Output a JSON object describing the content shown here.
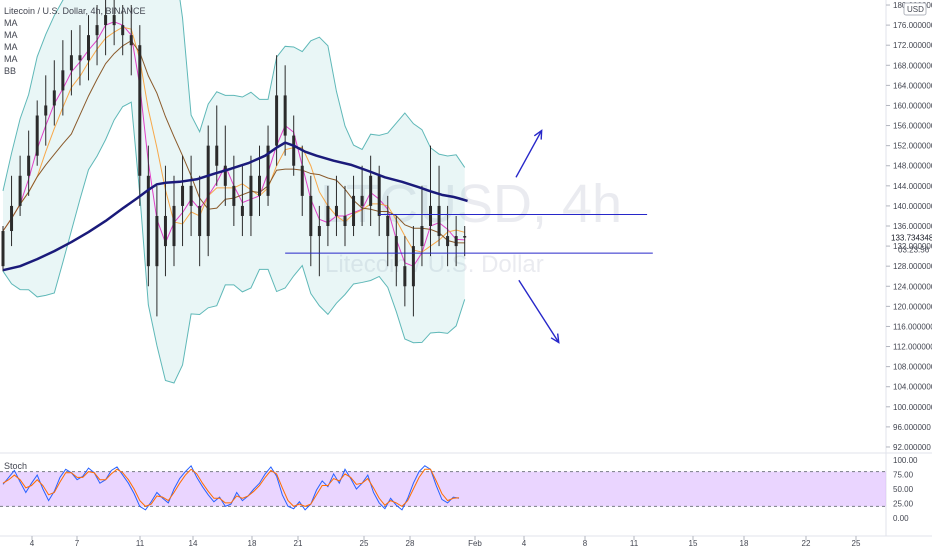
{
  "symbol_title": "Litecoin / U.S. Dollar, 4h, BINANCE",
  "indicators": [
    "MA",
    "MA",
    "MA",
    "MA",
    "BB"
  ],
  "watermark": {
    "symbol": "LTCUSD, 4h",
    "name": "Litecoin / U.S. Dollar"
  },
  "currency_badge": "USD",
  "stoch_label": "Stoch",
  "chart_data": {
    "type": "line",
    "title": "Litecoin / U.S. Dollar, 4h, BINANCE",
    "y_ticks": [
      "92.000000",
      "96.000000",
      "100.000000",
      "104.000000",
      "108.000000",
      "112.000000",
      "116.000000",
      "120.000000",
      "124.000000",
      "128.000000",
      "132.000000",
      "136.000000",
      "140.000000",
      "144.000000",
      "148.000000",
      "152.000000",
      "156.000000",
      "160.000000",
      "164.000000",
      "168.000000",
      "172.000000",
      "176.000000",
      "180.000000"
    ],
    "ylim": [
      91,
      181
    ],
    "x_ticks": [
      "4",
      "7",
      "11",
      "14",
      "18",
      "21",
      "25",
      "28",
      "Feb",
      "4",
      "8",
      "11",
      "15",
      "18",
      "22",
      "25"
    ],
    "last_price": "133.734348",
    "countdown": "03:23:56",
    "last_price_value": 133.73,
    "ma_long_series": [
      [
        0,
        127.2
      ],
      [
        6,
        128.0
      ],
      [
        12,
        129.4
      ],
      [
        18,
        131.0
      ],
      [
        24,
        132.8
      ],
      [
        30,
        134.8
      ],
      [
        36,
        137.0
      ],
      [
        42,
        139.5
      ],
      [
        47,
        141.5
      ],
      [
        51,
        143.2
      ],
      [
        54,
        144.3
      ],
      [
        57,
        144.6
      ],
      [
        62,
        144.8
      ],
      [
        68,
        145.3
      ],
      [
        74,
        146.4
      ],
      [
        80,
        147.4
      ],
      [
        86,
        148.5
      ],
      [
        92,
        150.0
      ],
      [
        96,
        151.6
      ],
      [
        99,
        152.6
      ],
      [
        102,
        152.0
      ],
      [
        106,
        150.8
      ],
      [
        110,
        150.0
      ],
      [
        116,
        149.0
      ],
      [
        122,
        148.2
      ],
      [
        128,
        147.0
      ],
      [
        134,
        145.7
      ],
      [
        140,
        144.8
      ],
      [
        146,
        143.7
      ],
      [
        150,
        142.9
      ],
      [
        154,
        142.2
      ],
      [
        158,
        141.8
      ],
      [
        160,
        141.5
      ],
      [
        163,
        141.0
      ]
    ],
    "support_line": {
      "x": [
        99,
        228
      ],
      "y": 130.6
    },
    "resistance_line": {
      "x": [
        132,
        226
      ],
      "y": 138.3
    },
    "arrow_up": {
      "from": [
        180,
        145.7
      ],
      "to": [
        189,
        155.0
      ]
    },
    "arrow_down": {
      "from": [
        181,
        125.2
      ],
      "to": [
        195,
        112.8
      ]
    },
    "candles": [
      [
        0,
        128,
        136,
        127,
        135
      ],
      [
        3,
        135,
        146,
        132,
        140
      ],
      [
        6,
        140,
        150,
        138,
        146
      ],
      [
        9,
        146,
        155,
        142,
        150
      ],
      [
        12,
        150,
        161,
        148,
        158
      ],
      [
        15,
        158,
        166,
        152,
        160
      ],
      [
        18,
        160,
        169,
        156,
        163
      ],
      [
        21,
        163,
        173,
        158,
        167
      ],
      [
        24,
        167,
        175,
        162,
        170
      ],
      [
        27,
        170,
        176,
        164,
        169
      ],
      [
        30,
        169,
        178,
        165,
        174
      ],
      [
        33,
        174,
        180,
        168,
        176
      ],
      [
        36,
        176,
        181,
        170,
        178
      ],
      [
        39,
        178,
        181,
        172,
        176
      ],
      [
        42,
        176,
        180,
        170,
        174
      ],
      [
        45,
        174,
        180,
        166,
        172
      ],
      [
        48,
        172,
        176,
        140,
        146
      ],
      [
        51,
        146,
        152,
        124,
        128
      ],
      [
        54,
        128,
        144,
        118,
        138
      ],
      [
        57,
        138,
        148,
        126,
        132
      ],
      [
        60,
        132,
        146,
        128,
        140
      ],
      [
        63,
        140,
        150,
        132,
        144
      ],
      [
        66,
        144,
        150,
        134,
        140
      ],
      [
        69,
        140,
        146,
        128,
        134
      ],
      [
        72,
        134,
        156,
        130,
        152
      ],
      [
        75,
        152,
        160,
        144,
        148
      ],
      [
        78,
        148,
        156,
        140,
        144
      ],
      [
        81,
        144,
        150,
        136,
        140
      ],
      [
        84,
        140,
        148,
        134,
        138
      ],
      [
        87,
        138,
        150,
        134,
        146
      ],
      [
        90,
        146,
        152,
        138,
        142
      ],
      [
        93,
        142,
        156,
        140,
        152
      ],
      [
        96,
        152,
        170,
        148,
        162
      ],
      [
        99,
        162,
        168,
        150,
        154
      ],
      [
        102,
        154,
        158,
        146,
        148
      ],
      [
        105,
        148,
        152,
        138,
        142
      ],
      [
        108,
        142,
        146,
        128,
        134
      ],
      [
        111,
        134,
        140,
        126,
        136
      ],
      [
        114,
        136,
        144,
        132,
        140
      ],
      [
        117,
        140,
        146,
        134,
        138
      ],
      [
        120,
        138,
        144,
        132,
        136
      ],
      [
        123,
        136,
        146,
        134,
        142
      ],
      [
        126,
        142,
        148,
        136,
        140
      ],
      [
        129,
        140,
        150,
        136,
        146
      ],
      [
        132,
        146,
        148,
        134,
        138
      ],
      [
        135,
        138,
        142,
        128,
        134
      ],
      [
        138,
        134,
        138,
        124,
        128
      ],
      [
        141,
        128,
        134,
        120,
        124
      ],
      [
        144,
        124,
        136,
        118,
        132
      ],
      [
        147,
        132,
        144,
        128,
        136
      ],
      [
        150,
        136,
        152,
        130,
        140
      ],
      [
        153,
        140,
        148,
        132,
        134
      ],
      [
        156,
        134,
        140,
        128,
        132
      ],
      [
        159,
        132,
        138,
        128,
        134
      ],
      [
        162,
        134,
        136,
        130,
        133.7
      ]
    ],
    "stoch_yticks": [
      "100.00",
      "75.00",
      "50.00",
      "25.00",
      "0.00"
    ],
    "stoch_band": [
      20,
      80
    ],
    "stoch_k": [
      [
        0,
        58
      ],
      [
        2,
        70
      ],
      [
        4,
        82
      ],
      [
        6,
        62
      ],
      [
        8,
        44
      ],
      [
        10,
        60
      ],
      [
        12,
        74
      ],
      [
        14,
        50
      ],
      [
        16,
        30
      ],
      [
        18,
        46
      ],
      [
        20,
        70
      ],
      [
        22,
        84
      ],
      [
        24,
        78
      ],
      [
        26,
        66
      ],
      [
        28,
        72
      ],
      [
        30,
        86
      ],
      [
        32,
        78
      ],
      [
        34,
        60
      ],
      [
        36,
        66
      ],
      [
        38,
        82
      ],
      [
        40,
        88
      ],
      [
        42,
        74
      ],
      [
        44,
        60
      ],
      [
        46,
        42
      ],
      [
        48,
        20
      ],
      [
        50,
        14
      ],
      [
        52,
        28
      ],
      [
        54,
        44
      ],
      [
        56,
        34
      ],
      [
        58,
        26
      ],
      [
        60,
        50
      ],
      [
        62,
        68
      ],
      [
        64,
        80
      ],
      [
        66,
        90
      ],
      [
        68,
        70
      ],
      [
        70,
        54
      ],
      [
        72,
        40
      ],
      [
        74,
        28
      ],
      [
        76,
        36
      ],
      [
        78,
        20
      ],
      [
        80,
        24
      ],
      [
        82,
        44
      ],
      [
        84,
        30
      ],
      [
        86,
        38
      ],
      [
        88,
        50
      ],
      [
        90,
        60
      ],
      [
        92,
        76
      ],
      [
        94,
        88
      ],
      [
        96,
        72
      ],
      [
        98,
        40
      ],
      [
        100,
        20
      ],
      [
        102,
        16
      ],
      [
        104,
        28
      ],
      [
        106,
        14
      ],
      [
        108,
        24
      ],
      [
        110,
        48
      ],
      [
        112,
        64
      ],
      [
        114,
        54
      ],
      [
        116,
        76
      ],
      [
        118,
        60
      ],
      [
        120,
        84
      ],
      [
        122,
        68
      ],
      [
        124,
        50
      ],
      [
        126,
        60
      ],
      [
        128,
        74
      ],
      [
        130,
        44
      ],
      [
        132,
        26
      ],
      [
        134,
        16
      ],
      [
        136,
        34
      ],
      [
        138,
        22
      ],
      [
        140,
        14
      ],
      [
        142,
        34
      ],
      [
        144,
        60
      ],
      [
        146,
        80
      ],
      [
        148,
        90
      ],
      [
        150,
        84
      ],
      [
        152,
        56
      ],
      [
        154,
        32
      ],
      [
        156,
        26
      ],
      [
        158,
        36
      ],
      [
        160,
        34
      ]
    ],
    "stoch_d": [
      [
        0,
        60
      ],
      [
        2,
        66
      ],
      [
        4,
        74
      ],
      [
        6,
        66
      ],
      [
        8,
        52
      ],
      [
        10,
        56
      ],
      [
        12,
        66
      ],
      [
        14,
        56
      ],
      [
        16,
        40
      ],
      [
        18,
        44
      ],
      [
        20,
        62
      ],
      [
        22,
        78
      ],
      [
        24,
        78
      ],
      [
        26,
        70
      ],
      [
        28,
        70
      ],
      [
        30,
        80
      ],
      [
        32,
        78
      ],
      [
        34,
        66
      ],
      [
        36,
        66
      ],
      [
        38,
        76
      ],
      [
        40,
        84
      ],
      [
        42,
        78
      ],
      [
        44,
        66
      ],
      [
        46,
        50
      ],
      [
        48,
        30
      ],
      [
        50,
        20
      ],
      [
        52,
        24
      ],
      [
        54,
        38
      ],
      [
        56,
        36
      ],
      [
        58,
        30
      ],
      [
        60,
        44
      ],
      [
        62,
        60
      ],
      [
        64,
        74
      ],
      [
        66,
        84
      ],
      [
        68,
        76
      ],
      [
        70,
        60
      ],
      [
        72,
        46
      ],
      [
        74,
        34
      ],
      [
        76,
        34
      ],
      [
        78,
        26
      ],
      [
        80,
        26
      ],
      [
        82,
        38
      ],
      [
        84,
        34
      ],
      [
        86,
        38
      ],
      [
        88,
        46
      ],
      [
        90,
        56
      ],
      [
        92,
        70
      ],
      [
        94,
        82
      ],
      [
        96,
        76
      ],
      [
        98,
        52
      ],
      [
        100,
        30
      ],
      [
        102,
        20
      ],
      [
        104,
        24
      ],
      [
        106,
        20
      ],
      [
        108,
        24
      ],
      [
        110,
        40
      ],
      [
        112,
        56
      ],
      [
        114,
        56
      ],
      [
        116,
        68
      ],
      [
        118,
        64
      ],
      [
        120,
        76
      ],
      [
        122,
        70
      ],
      [
        124,
        58
      ],
      [
        126,
        60
      ],
      [
        128,
        68
      ],
      [
        130,
        52
      ],
      [
        132,
        34
      ],
      [
        134,
        22
      ],
      [
        136,
        30
      ],
      [
        138,
        26
      ],
      [
        140,
        20
      ],
      [
        142,
        30
      ],
      [
        144,
        50
      ],
      [
        146,
        70
      ],
      [
        148,
        84
      ],
      [
        150,
        84
      ],
      [
        152,
        64
      ],
      [
        154,
        42
      ],
      [
        156,
        30
      ],
      [
        158,
        34
      ],
      [
        160,
        35
      ]
    ]
  },
  "colors": {
    "candle": "#2b2b2b",
    "bb_fill": "rgba(120,200,200,0.16)",
    "bb_line": "#5fb8b8",
    "ma_long": "#1a1a7a",
    "ma_orange": "#f7a84a",
    "ma_pink": "#e040c8",
    "ma_brown": "#8a5a2b",
    "drawing": "#2727c9",
    "stoch_band": "#d9b3ff",
    "stoch_k": "#2962ff",
    "stoch_d": "#ff6d00",
    "axis_text": "#434651"
  }
}
